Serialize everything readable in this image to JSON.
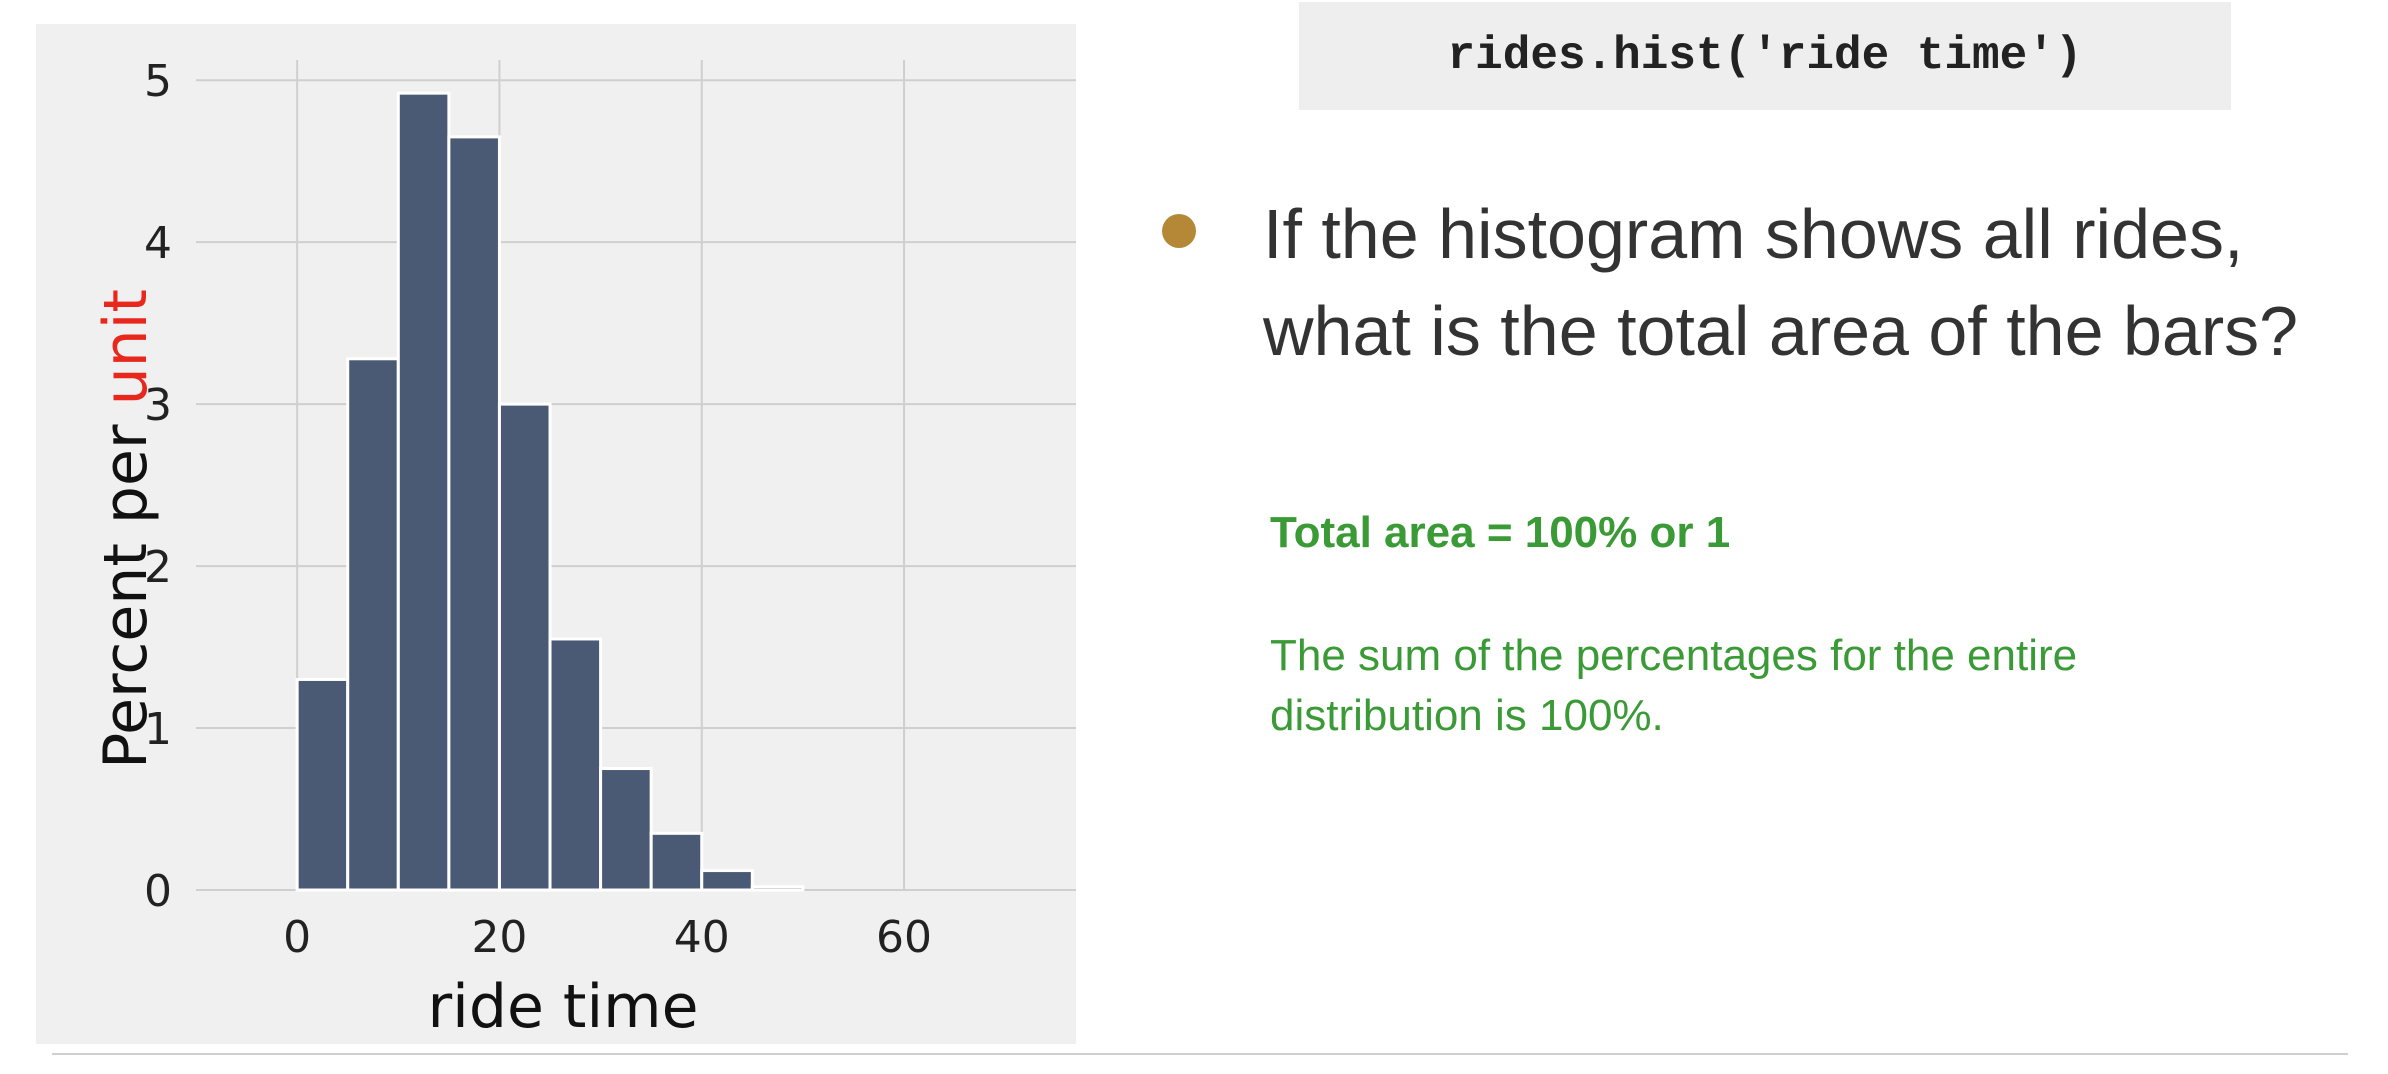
{
  "chart_data": {
    "type": "bar",
    "bins": [
      {
        "start": 0,
        "end": 5,
        "value": 1.3
      },
      {
        "start": 5,
        "end": 10,
        "value": 3.28
      },
      {
        "start": 10,
        "end": 15,
        "value": 4.92
      },
      {
        "start": 15,
        "end": 20,
        "value": 4.65
      },
      {
        "start": 20,
        "end": 25,
        "value": 3.0
      },
      {
        "start": 25,
        "end": 30,
        "value": 1.55
      },
      {
        "start": 30,
        "end": 35,
        "value": 0.75
      },
      {
        "start": 35,
        "end": 40,
        "value": 0.35
      },
      {
        "start": 40,
        "end": 45,
        "value": 0.12
      },
      {
        "start": 45,
        "end": 50,
        "value": 0.02
      }
    ],
    "xticks": [
      0,
      20,
      40,
      60
    ],
    "yticks": [
      0,
      1,
      2,
      3,
      4,
      5
    ],
    "xlim": [
      -10,
      77
    ],
    "ylim": [
      0,
      5.1
    ],
    "xlabel": "ride time",
    "ylabel_prefix": "Percent per ",
    "ylabel_highlight": "unit",
    "grid": true,
    "bar_color": "#4a5a75",
    "highlight_color": "#e8281c"
  },
  "code": "rides.hist('ride time')",
  "question": "If the histogram shows all rides, what is the total area of the bars?",
  "answer": {
    "heading": "Total area = 100% or 1",
    "body": "The sum of the percentages for the entire distribution is 100%."
  }
}
